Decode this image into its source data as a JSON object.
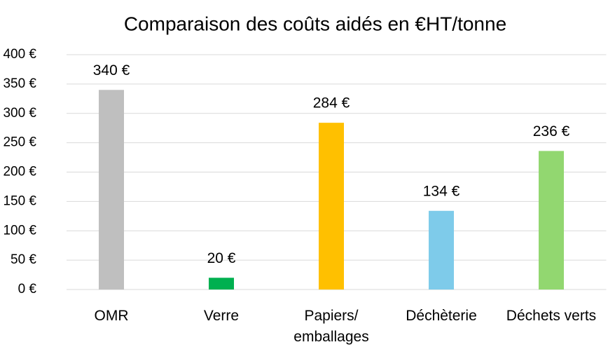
{
  "chart_data": {
    "type": "bar",
    "title": "Comparaison des coûts aidés en €HT/tonne",
    "categories": [
      "OMR",
      "Verre",
      "Papiers/ emballages",
      "Déchèterie",
      "Déchets verts"
    ],
    "values": [
      340,
      20,
      284,
      134,
      236
    ],
    "value_labels": [
      "340 €",
      "20 €",
      "284 €",
      "134 €",
      "236 €"
    ],
    "colors": [
      "#bfbfbf",
      "#00b050",
      "#ffc000",
      "#7ecbea",
      "#92d770"
    ],
    "ylim": [
      0,
      400
    ],
    "yticks": [
      {
        "value": 0,
        "label": "0 €"
      },
      {
        "value": 50,
        "label": "50 €"
      },
      {
        "value": 100,
        "label": "100 €"
      },
      {
        "value": 150,
        "label": "150 €"
      },
      {
        "value": 200,
        "label": "200 €"
      },
      {
        "value": 250,
        "label": "250 €"
      },
      {
        "value": 300,
        "label": "300 €"
      },
      {
        "value": 350,
        "label": "350 €"
      },
      {
        "value": 400,
        "label": "400 €"
      }
    ],
    "grid": true
  }
}
